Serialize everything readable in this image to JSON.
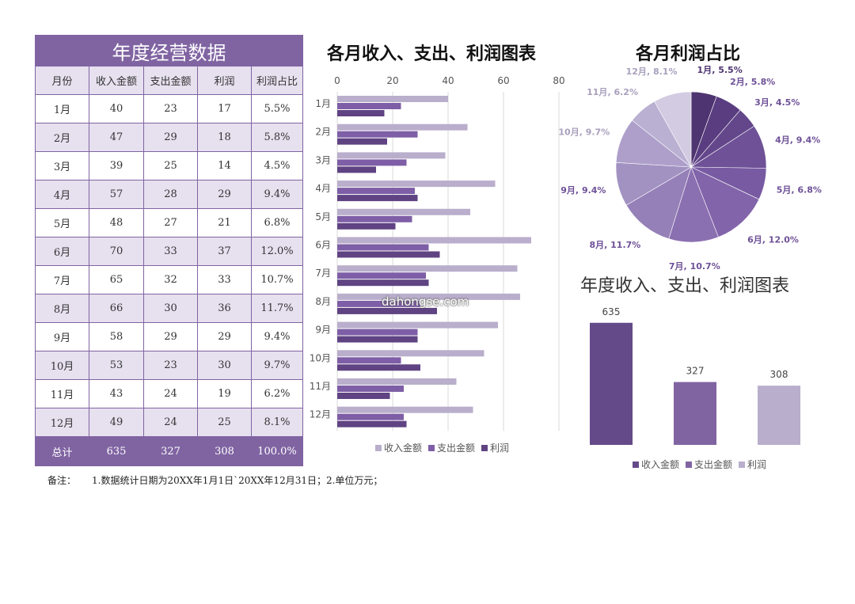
{
  "table": {
    "title": "年度经营数据",
    "headers": [
      "月份",
      "收入金额",
      "支出金额",
      "利润",
      "利润占比"
    ],
    "rows": [
      [
        "1月",
        "40",
        "23",
        "17",
        "5.5%"
      ],
      [
        "2月",
        "47",
        "29",
        "18",
        "5.8%"
      ],
      [
        "3月",
        "39",
        "25",
        "14",
        "4.5%"
      ],
      [
        "4月",
        "57",
        "28",
        "29",
        "9.4%"
      ],
      [
        "5月",
        "48",
        "27",
        "21",
        "6.8%"
      ],
      [
        "6月",
        "70",
        "33",
        "37",
        "12.0%"
      ],
      [
        "7月",
        "65",
        "32",
        "33",
        "10.7%"
      ],
      [
        "8月",
        "66",
        "30",
        "36",
        "11.7%"
      ],
      [
        "9月",
        "58",
        "29",
        "29",
        "9.4%"
      ],
      [
        "10月",
        "53",
        "23",
        "30",
        "9.7%"
      ],
      [
        "11月",
        "43",
        "24",
        "19",
        "6.2%"
      ],
      [
        "12月",
        "49",
        "24",
        "25",
        "8.1%"
      ]
    ],
    "total": [
      "总计",
      "635",
      "327",
      "308",
      "100.0%"
    ]
  },
  "note": {
    "label": "备注：",
    "text": "1.数据统计日期为20XX年1月1日`20XX年12月31日；2.单位万元；"
  },
  "watermark": "dahongse.com",
  "colors": {
    "income": "#b9aecb",
    "expense": "#7e5ea6",
    "profit": "#5f4382",
    "header_bg": "#8064a2",
    "row_alt": "#e6e0ef"
  },
  "chart_data": [
    {
      "type": "bar",
      "orientation": "horizontal",
      "title": "各月收入、支出、利润图表",
      "categories": [
        "1月",
        "2月",
        "3月",
        "4月",
        "5月",
        "6月",
        "7月",
        "8月",
        "9月",
        "10月",
        "11月",
        "12月"
      ],
      "series": [
        {
          "name": "收入金额",
          "color": "#b9aecb",
          "values": [
            40,
            47,
            39,
            57,
            48,
            70,
            65,
            66,
            58,
            53,
            43,
            49
          ]
        },
        {
          "name": "支出金额",
          "color": "#7e5ea6",
          "values": [
            23,
            29,
            25,
            28,
            27,
            33,
            32,
            30,
            29,
            23,
            24,
            24
          ]
        },
        {
          "name": "利润",
          "color": "#5f4382",
          "values": [
            17,
            18,
            14,
            29,
            21,
            37,
            33,
            36,
            29,
            30,
            19,
            25
          ]
        }
      ],
      "xlim": [
        0,
        80
      ],
      "xticks": [
        "0",
        "20",
        "40",
        "60",
        "80"
      ],
      "legend": "bottom",
      "grid": true
    },
    {
      "type": "pie",
      "title": "各月利润占比",
      "labels": [
        "1月",
        "2月",
        "3月",
        "4月",
        "5月",
        "6月",
        "7月",
        "8月",
        "9月",
        "10月",
        "11月",
        "12月"
      ],
      "values": [
        5.5,
        5.8,
        4.5,
        9.4,
        6.8,
        12.0,
        10.7,
        11.7,
        9.4,
        9.7,
        6.2,
        8.1
      ],
      "value_labels": [
        "5.5%",
        "5.8%",
        "4.5%",
        "9.4%",
        "6.8%",
        "12.0%",
        "10.7%",
        "11.7%",
        "9.4%",
        "9.7%",
        "6.2%",
        "8.1%"
      ],
      "colors": [
        "#4e3470",
        "#5a3d80",
        "#64478b",
        "#6e5197",
        "#785aa2",
        "#8264aa",
        "#8b70b1",
        "#9680b8",
        "#a192c2",
        "#ad9fca",
        "#b9b0d2",
        "#d2cbe1"
      ]
    },
    {
      "type": "bar",
      "title": "年度收入、支出、利润图表",
      "categories": [
        "收入金额",
        "支出金额",
        "利润"
      ],
      "values": [
        635,
        327,
        308
      ],
      "value_labels": [
        "635",
        "327",
        "308"
      ],
      "colors": [
        "#654a8a",
        "#8064a2",
        "#b9aecb"
      ],
      "ylim": [
        0,
        700
      ],
      "legend": "bottom",
      "grid": false
    }
  ]
}
